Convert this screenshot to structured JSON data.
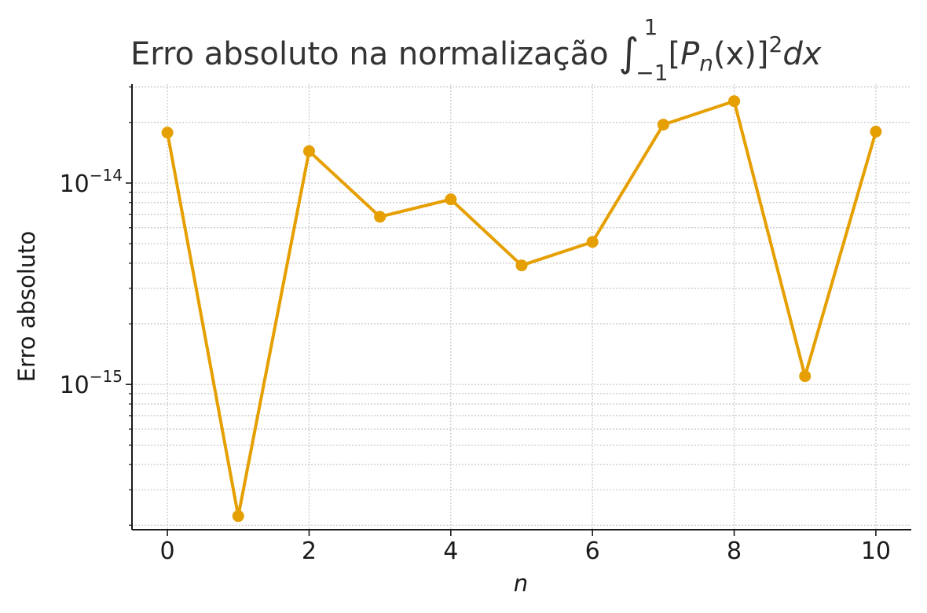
{
  "chart_data": {
    "type": "line",
    "title": {
      "prefix": "Erro absoluto na normalização ",
      "integral_upper": "1",
      "integral_lower": "−1",
      "integrand_open": "[",
      "integrand_var": "P",
      "integrand_sub": "n",
      "integrand_arg": "(x)]",
      "integrand_sup": "2",
      "differential": "dx"
    },
    "xlabel": "n",
    "ylabel": "Erro absoluto",
    "x": [
      0,
      1,
      2,
      3,
      4,
      5,
      6,
      7,
      8,
      9,
      10
    ],
    "y": [
      1.78e-14,
      2.22e-16,
      1.44e-14,
      6.8e-15,
      8.3e-15,
      3.9e-15,
      5.1e-15,
      1.95e-14,
      2.55e-14,
      1.1e-15,
      1.8e-14
    ],
    "xlim": [
      -0.5,
      10.5
    ],
    "ylim": [
      1.9e-16,
      3.1e-14
    ],
    "yscale": "log",
    "x_ticks": [
      0,
      2,
      4,
      6,
      8,
      10
    ],
    "y_ticks": [
      {
        "value": 1e-14,
        "base": "10",
        "exponent": "−14"
      },
      {
        "value": 1e-15,
        "base": "10",
        "exponent": "−15"
      }
    ],
    "grid": true,
    "legend": "none",
    "series_color": "#E69F00",
    "marker": "circle"
  }
}
